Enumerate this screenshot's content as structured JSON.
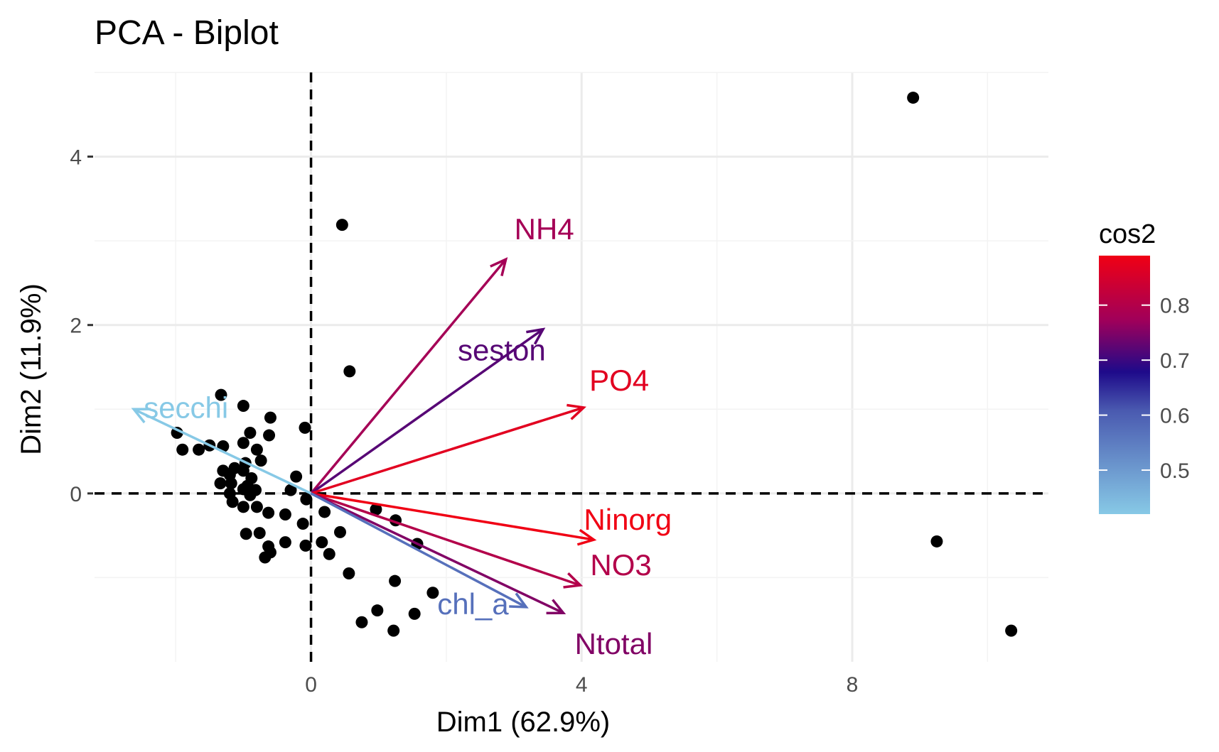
{
  "chart_data": {
    "type": "scatter",
    "title": "PCA - Biplot",
    "xlabel": "Dim1 (62.9%)",
    "ylabel": "Dim2 (11.9%)",
    "xlim": [
      -3.2,
      10.9
    ],
    "ylim": [
      -2.0,
      5.0
    ],
    "x_ticks": [
      0,
      4,
      8
    ],
    "y_ticks": [
      0,
      2,
      4
    ],
    "grid": true,
    "reference_lines": [
      "x = 0 (dashed)",
      "y = 0 (dashed)"
    ],
    "individuals": [
      {
        "x": 8.9,
        "y": 4.7
      },
      {
        "x": 9.25,
        "y": -0.57
      },
      {
        "x": 10.35,
        "y": -1.63
      },
      {
        "x": 0.46,
        "y": 3.19
      },
      {
        "x": 0.57,
        "y": 1.45
      },
      {
        "x": -1.33,
        "y": 1.17
      },
      {
        "x": -1.0,
        "y": 1.04
      },
      {
        "x": -0.6,
        "y": 0.9
      },
      {
        "x": -0.09,
        "y": 0.78
      },
      {
        "x": -1.98,
        "y": 0.72
      },
      {
        "x": -0.9,
        "y": 0.72
      },
      {
        "x": -0.62,
        "y": 0.69
      },
      {
        "x": -1.0,
        "y": 0.6
      },
      {
        "x": -1.5,
        "y": 0.57
      },
      {
        "x": -1.3,
        "y": 0.56
      },
      {
        "x": -1.9,
        "y": 0.52
      },
      {
        "x": -0.8,
        "y": 0.52
      },
      {
        "x": -1.66,
        "y": 0.52
      },
      {
        "x": -0.74,
        "y": 0.39
      },
      {
        "x": -0.97,
        "y": 0.36
      },
      {
        "x": -1.13,
        "y": 0.3
      },
      {
        "x": -1.0,
        "y": 0.27
      },
      {
        "x": -1.3,
        "y": 0.27
      },
      {
        "x": -1.2,
        "y": 0.22
      },
      {
        "x": -0.88,
        "y": 0.18
      },
      {
        "x": -0.22,
        "y": 0.2
      },
      {
        "x": -1.34,
        "y": 0.12
      },
      {
        "x": -1.18,
        "y": 0.12
      },
      {
        "x": -0.94,
        "y": 0.09
      },
      {
        "x": -1.0,
        "y": 0.05
      },
      {
        "x": -0.82,
        "y": 0.04
      },
      {
        "x": -0.3,
        "y": 0.04
      },
      {
        "x": -1.2,
        "y": 0.0
      },
      {
        "x": -0.9,
        "y": -0.02
      },
      {
        "x": -0.07,
        "y": -0.07
      },
      {
        "x": -1.16,
        "y": -0.1
      },
      {
        "x": -1.0,
        "y": -0.16
      },
      {
        "x": -0.8,
        "y": -0.16
      },
      {
        "x": -0.63,
        "y": -0.23
      },
      {
        "x": -0.38,
        "y": -0.25
      },
      {
        "x": 0.2,
        "y": -0.22
      },
      {
        "x": 0.96,
        "y": -0.19
      },
      {
        "x": 1.25,
        "y": -0.32
      },
      {
        "x": -0.12,
        "y": -0.36
      },
      {
        "x": -0.96,
        "y": -0.48
      },
      {
        "x": -0.76,
        "y": -0.47
      },
      {
        "x": 0.43,
        "y": -0.46
      },
      {
        "x": -0.38,
        "y": -0.58
      },
      {
        "x": -0.63,
        "y": -0.63
      },
      {
        "x": 0.16,
        "y": -0.58
      },
      {
        "x": 1.57,
        "y": -0.6
      },
      {
        "x": -0.6,
        "y": -0.7
      },
      {
        "x": -0.08,
        "y": -0.62
      },
      {
        "x": 0.27,
        "y": -0.72
      },
      {
        "x": -0.68,
        "y": -0.76
      },
      {
        "x": 0.56,
        "y": -0.95
      },
      {
        "x": 1.24,
        "y": -1.04
      },
      {
        "x": 1.8,
        "y": -1.18
      },
      {
        "x": 0.98,
        "y": -1.39
      },
      {
        "x": 1.53,
        "y": -1.43
      },
      {
        "x": 0.75,
        "y": -1.53
      },
      {
        "x": 1.22,
        "y": -1.63
      }
    ],
    "variables": [
      {
        "name": "NH4",
        "x": 2.88,
        "y": 2.78,
        "cos2": 0.78
      },
      {
        "name": "seston",
        "x": 3.43,
        "y": 1.95,
        "cos2": 0.72
      },
      {
        "name": "PO4",
        "x": 4.03,
        "y": 1.02,
        "cos2": 0.87
      },
      {
        "name": "secchi",
        "x": -2.62,
        "y": 1.0,
        "cos2": 0.42
      },
      {
        "name": "Ninorg",
        "x": 4.18,
        "y": -0.55,
        "cos2": 0.89
      },
      {
        "name": "NO3",
        "x": 3.98,
        "y": -1.09,
        "cos2": 0.8
      },
      {
        "name": "Ntotal",
        "x": 3.73,
        "y": -1.42,
        "cos2": 0.75
      },
      {
        "name": "chl_a",
        "x": 3.18,
        "y": -1.35,
        "cos2": 0.57
      }
    ],
    "legend": {
      "title": "cos2",
      "position": "right",
      "ticks": [
        0.5,
        0.6,
        0.7,
        0.8
      ],
      "range": [
        0.42,
        0.89
      ],
      "gradient": [
        "#87C9E6",
        "#1E0A8A",
        "#F00014"
      ]
    }
  }
}
